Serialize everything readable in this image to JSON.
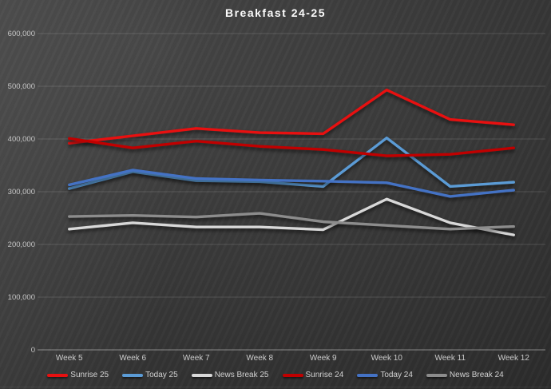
{
  "chart": {
    "title": "Breakfast 24-25"
  },
  "chart_data": {
    "type": "line",
    "title": "Breakfast 24-25",
    "categories": [
      "Week 5",
      "Week 6",
      "Week 7",
      "Week 8",
      "Week 9",
      "Week 10",
      "Week 11",
      "Week 12"
    ],
    "series": [
      {
        "name": "Sunrise 25",
        "color": "#e81010",
        "values": [
          392000,
          406000,
          420000,
          412000,
          410000,
          493000,
          437000,
          427000
        ]
      },
      {
        "name": "Today 25",
        "color": "#5b9bd5",
        "values": [
          306000,
          338000,
          321000,
          319000,
          310000,
          402000,
          310000,
          318000
        ]
      },
      {
        "name": "News Break 25",
        "color": "#d8d8d8",
        "values": [
          229000,
          241000,
          233000,
          233000,
          228000,
          286000,
          241000,
          218000
        ]
      },
      {
        "name": "Sunrise 24",
        "color": "#c00000",
        "values": [
          401000,
          383000,
          396000,
          386000,
          380000,
          368000,
          371000,
          383000
        ]
      },
      {
        "name": "Today 24",
        "color": "#4472c4",
        "values": [
          313000,
          341000,
          325000,
          322000,
          320000,
          317000,
          291000,
          303000
        ]
      },
      {
        "name": "News Break 24",
        "color": "#8c8c8c",
        "values": [
          253000,
          255000,
          252000,
          259000,
          243000,
          236000,
          229000,
          234000
        ]
      }
    ],
    "ylim": [
      0,
      600000
    ],
    "y_ticks": [
      {
        "value": 0,
        "label": "0"
      },
      {
        "value": 100000,
        "label": "100,000"
      },
      {
        "value": 200000,
        "label": "200,000"
      },
      {
        "value": 300000,
        "label": "300,000"
      },
      {
        "value": 400000,
        "label": "400,000"
      },
      {
        "value": 500000,
        "label": "500,000"
      },
      {
        "value": 600000,
        "label": "600,000"
      }
    ],
    "grid": true,
    "legend_position": "bottom"
  }
}
